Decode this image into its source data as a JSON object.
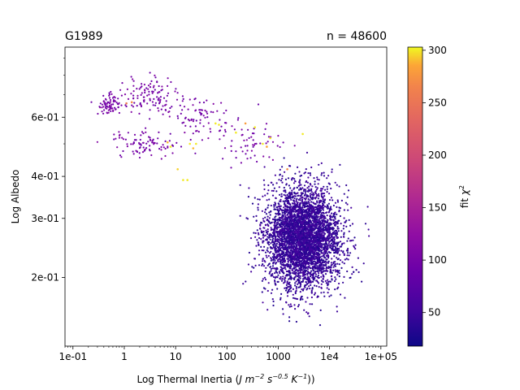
{
  "chart_data": {
    "type": "scatter",
    "title_left": "G1989",
    "title_right": "n = 48600",
    "xlabel_main": "Log Thermal Inertia (",
    "xlabel_units": "J m",
    "xlabel_exp1": "−2",
    "xlabel_s": " s",
    "xlabel_exp2": "−0.5",
    "xlabel_k": " K",
    "xlabel_exp3": "−1",
    "xlabel_close": "))",
    "ylabel": "Log Albedo",
    "x_scale": "log",
    "y_scale": "log",
    "xlim": [
      0.07,
      130000
    ],
    "ylim": [
      0.125,
      0.97
    ],
    "x_ticks": [
      {
        "value": 0.1,
        "label": "1e-01"
      },
      {
        "value": 1,
        "label": "1"
      },
      {
        "value": 10,
        "label": "10"
      },
      {
        "value": 100,
        "label": "100"
      },
      {
        "value": 1000,
        "label": "1000"
      },
      {
        "value": 10000,
        "label": "1e4"
      },
      {
        "value": 100000,
        "label": "1e+05"
      }
    ],
    "y_ticks": [
      {
        "value": 0.2,
        "label": "2e-01"
      },
      {
        "value": 0.3,
        "label": "3e-01"
      },
      {
        "value": 0.4,
        "label": "4e-01"
      },
      {
        "value": 0.6,
        "label": "6e-01"
      }
    ],
    "colorbar": {
      "label_main": "fit ",
      "label_sym": "χ",
      "label_exp": "2",
      "range": [
        18,
        303
      ],
      "ticks": [
        50,
        100,
        150,
        200,
        250,
        300
      ],
      "colormap": "plasma"
    },
    "clusters": [
      {
        "center_x": 3000,
        "center_y": 0.262,
        "spread_logx": 0.36,
        "spread_logy": 0.075,
        "count": 4200,
        "chi2_typical": 45
      },
      {
        "center_x": 0.5,
        "center_y": 0.655,
        "spread_logx": 0.12,
        "spread_logy": 0.015,
        "count": 70,
        "chi2_typical": 100
      },
      {
        "center_x": 3,
        "center_y": 0.69,
        "spread_logx": 0.3,
        "spread_logy": 0.03,
        "count": 120,
        "chi2_typical": 100
      },
      {
        "center_x": 2.5,
        "center_y": 0.5,
        "spread_logx": 0.3,
        "spread_logy": 0.02,
        "count": 90,
        "chi2_typical": 100
      },
      {
        "center_x": 30,
        "center_y": 0.6,
        "spread_logx": 0.3,
        "spread_logy": 0.03,
        "count": 80,
        "chi2_typical": 100
      },
      {
        "center_x": 300,
        "center_y": 0.5,
        "spread_logx": 0.35,
        "spread_logy": 0.03,
        "count": 60,
        "chi2_typical": 100
      }
    ],
    "highlight_points": [
      {
        "x": 1.1,
        "y": 0.66,
        "chi2": 255
      },
      {
        "x": 1.4,
        "y": 0.665,
        "chi2": 270
      },
      {
        "x": 7,
        "y": 0.505,
        "chi2": 290
      },
      {
        "x": 8,
        "y": 0.49,
        "chi2": 300
      },
      {
        "x": 11,
        "y": 0.42,
        "chi2": 295
      },
      {
        "x": 14,
        "y": 0.39,
        "chi2": 300
      },
      {
        "x": 17,
        "y": 0.39,
        "chi2": 300
      },
      {
        "x": 19,
        "y": 0.5,
        "chi2": 300
      },
      {
        "x": 22,
        "y": 0.485,
        "chi2": 290
      },
      {
        "x": 25,
        "y": 0.5,
        "chi2": 300
      },
      {
        "x": 60,
        "y": 0.575,
        "chi2": 300
      },
      {
        "x": 70,
        "y": 0.57,
        "chi2": 300
      },
      {
        "x": 150,
        "y": 0.54,
        "chi2": 300
      },
      {
        "x": 230,
        "y": 0.575,
        "chi2": 280
      },
      {
        "x": 350,
        "y": 0.56,
        "chi2": 300
      },
      {
        "x": 500,
        "y": 0.5,
        "chi2": 300
      },
      {
        "x": 600,
        "y": 0.49,
        "chi2": 285
      },
      {
        "x": 700,
        "y": 0.52,
        "chi2": 300
      },
      {
        "x": 3000,
        "y": 0.535,
        "chi2": 300
      },
      {
        "x": 1500,
        "y": 0.42,
        "chi2": 270
      }
    ]
  }
}
